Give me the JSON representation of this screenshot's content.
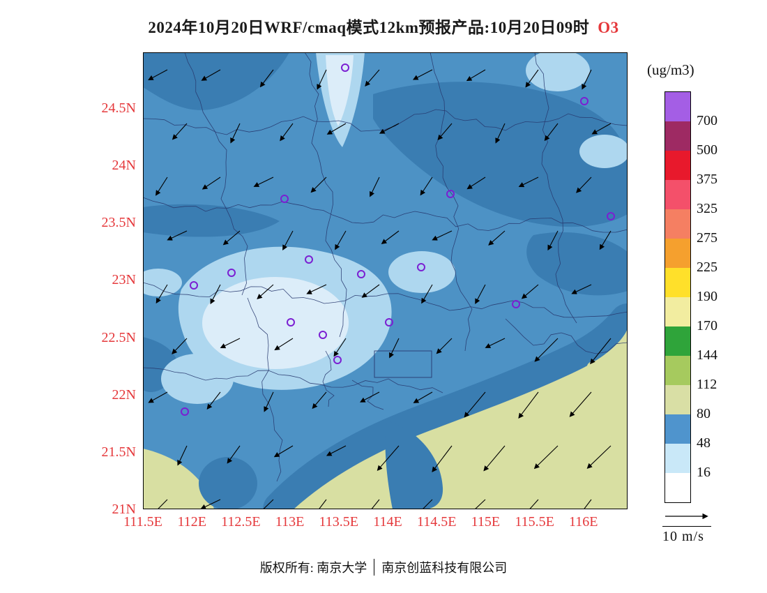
{
  "title": {
    "main": "2024年10月20日WRF/cmaq模式12km预报产品:10月20日09时",
    "species": "O3"
  },
  "axes": {
    "label_color": "#e5383b",
    "lat_labels": [
      "24.5N",
      "24N",
      "23.5N",
      "23N",
      "22.5N",
      "22N",
      "21.5N",
      "21N"
    ],
    "lon_labels": [
      "111.5E",
      "112E",
      "112.5E",
      "113E",
      "113.5E",
      "114E",
      "114.5E",
      "115E",
      "115.5E",
      "116E"
    ]
  },
  "colorbar": {
    "unit": "(ug/m3)",
    "tick_labels": [
      "700",
      "500",
      "375",
      "325",
      "275",
      "225",
      "190",
      "170",
      "144",
      "112",
      "80",
      "48",
      "16"
    ],
    "cell_colors": [
      "#a45ee5",
      "#9e2a63",
      "#e8192c",
      "#f4506a",
      "#f57f62",
      "#f5a02e",
      "#ffe02a",
      "#f2eda0",
      "#2fa43a",
      "#a6ca5e",
      "#d9dfa5",
      "#4f94cd",
      "#c9e8f8",
      "#ffffff"
    ]
  },
  "wind_legend": {
    "label": "10 m/s"
  },
  "footer": {
    "owner": "版权所有: 南京大学",
    "company": "南京创蓝科技有限公司"
  },
  "map": {
    "fill_colors": {
      "base": "#4d92c5",
      "dark": "#3a7db2",
      "light": "#aed7ef",
      "lighter": "#dcedf9",
      "olive": "#d8dfa2"
    },
    "station_color": "#7b1fd2",
    "stations": [
      [
        290,
        22
      ],
      [
        633,
        70
      ],
      [
        203,
        210
      ],
      [
        441,
        203
      ],
      [
        671,
        235
      ],
      [
        238,
        297
      ],
      [
        127,
        316
      ],
      [
        73,
        334
      ],
      [
        399,
        308
      ],
      [
        313,
        318
      ],
      [
        535,
        361
      ],
      [
        212,
        387
      ],
      [
        353,
        387
      ],
      [
        258,
        405
      ],
      [
        279,
        441
      ],
      [
        60,
        515
      ]
    ]
  }
}
